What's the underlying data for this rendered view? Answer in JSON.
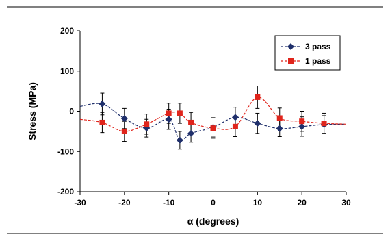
{
  "chart_data": {
    "type": "scatter",
    "xlabel": "α (degrees)",
    "ylabel": "Stress (MPa)",
    "xlim": [
      -30,
      30
    ],
    "ylim": [
      -200,
      200
    ],
    "xticks": [
      -30,
      -20,
      -10,
      0,
      10,
      20,
      30
    ],
    "yticks": [
      200,
      100,
      0,
      -100,
      -200
    ],
    "legend_position": "top-right",
    "grid": false,
    "series": [
      {
        "name": "3 pass",
        "color": "#1f2f6b",
        "marker": "diamond",
        "line": "dashed-smooth",
        "x": [
          -25,
          -20,
          -15,
          -10,
          -7.5,
          -5,
          0,
          5,
          10,
          15,
          20,
          25
        ],
        "y": [
          18,
          -18,
          -42,
          -20,
          -72,
          -55,
          -40,
          -15,
          -30,
          -43,
          -38,
          -33
        ],
        "err": [
          27,
          25,
          22,
          25,
          22,
          22,
          24,
          25,
          25,
          20,
          24,
          22
        ]
      },
      {
        "name": "1 pass",
        "color": "#e0241b",
        "marker": "square",
        "line": "dashed-smooth",
        "x": [
          -25,
          -20,
          -15,
          -10,
          -7.5,
          -5,
          0,
          5,
          10,
          15,
          20,
          25
        ],
        "y": [
          -28,
          -50,
          -32,
          -5,
          -5,
          -28,
          -42,
          -38,
          35,
          -17,
          -25,
          -30
        ],
        "err": [
          25,
          25,
          25,
          25,
          25,
          25,
          25,
          25,
          28,
          25,
          25,
          25
        ]
      }
    ],
    "tail_start": {
      "x": -30,
      "y": [
        12,
        -20
      ]
    },
    "tail_end": {
      "x": 30,
      "y": [
        -32,
        -32
      ]
    }
  }
}
